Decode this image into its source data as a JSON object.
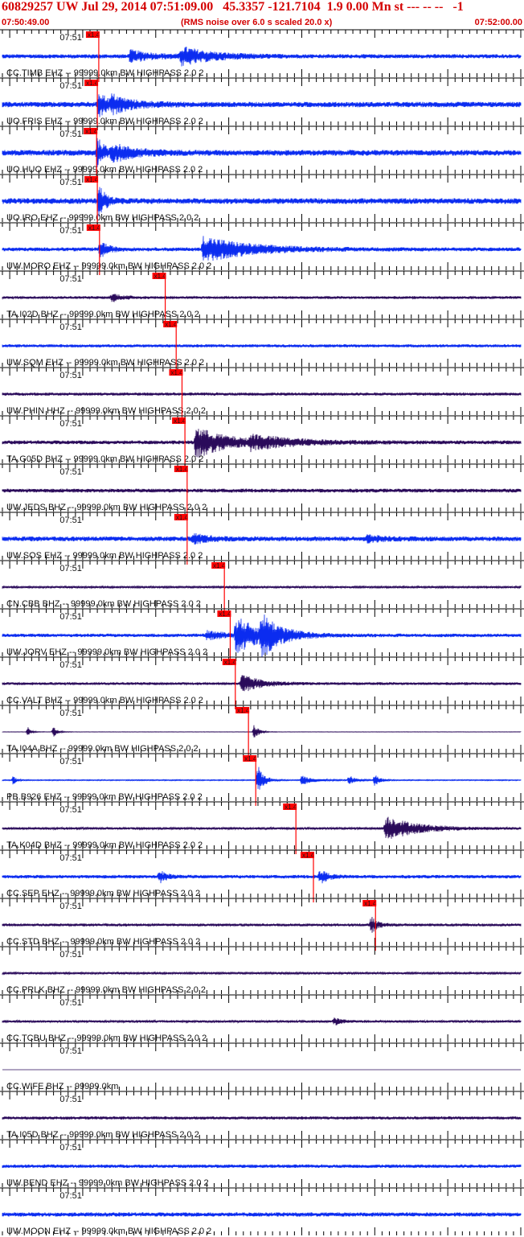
{
  "header": {
    "title": "60829257 UW Jul 29, 2014 07:51:09.00   45.3357 -121.7104  1.9 0.00 Mn st --- -- --   -1",
    "start_time": "07:50:49.00",
    "noise_note": "(RMS noise over 6.0 s scaled 20.0 x)",
    "end_time": "07:52:00.00"
  },
  "colors": {
    "title": "#d40000",
    "blue_trace": "#0b2cf0",
    "dark_trace": "#2a0a5a",
    "pick_line": "#ff0000",
    "pick_flag": "#ff0000",
    "axis": "#000000"
  },
  "chart_data": {
    "type": "line",
    "title": "60829257 UW Jul 29, 2014 07:51:09.00   45.3357 -121.7104  1.9 0.00 Mn st --- -- --   -1",
    "x_axis": {
      "start": "07:50:49.00",
      "end": "07:52:00.00",
      "minute_label": "07:51",
      "tick_interval_s": 1,
      "major_tick_interval_s": 10
    },
    "pick_flag_label": "x1.4",
    "series": [
      {
        "name": "CC.TIMB EHZ -- 99999.0km BW  HIGHPASS  2.0  2",
        "color": "blue",
        "pick_s": 13.2,
        "bursts": [
          {
            "t": 17.5,
            "a": 0.55,
            "w": 3
          },
          {
            "t": 24.5,
            "a": 0.9,
            "w": 4
          }
        ],
        "noise": 0.22
      },
      {
        "name": "UO.FRIS EHZ -- 99999.0km BW  HIGHPASS  2.0  2",
        "color": "blue",
        "pick_s": 13.0,
        "bursts": [
          {
            "t": 13.2,
            "a": 1.4,
            "w": 1.2
          },
          {
            "t": 15,
            "a": 0.7,
            "w": 3
          }
        ],
        "noise": 0.28
      },
      {
        "name": "UO.HUO EHZ -- 99999.0km BW  HIGHPASS  2.0  2",
        "color": "blue",
        "pick_s": 12.9,
        "bursts": [
          {
            "t": 13.0,
            "a": 1.5,
            "w": 1.0
          },
          {
            "t": 15,
            "a": 0.8,
            "w": 3
          }
        ],
        "noise": 0.3
      },
      {
        "name": "UO.IRO EHZ -- 99999.0km BW  HIGHPASS  2.0  2",
        "color": "blue",
        "pick_s": 13.0,
        "bursts": [
          {
            "t": 13.2,
            "a": 1.8,
            "w": 0.8
          }
        ],
        "noise": 0.3
      },
      {
        "name": "UW.MORO EHZ -- 99999.0km BW  HIGHPASS  2.0  2",
        "color": "blue",
        "pick_s": 13.3,
        "bursts": [
          {
            "t": 13.4,
            "a": 0.9,
            "w": 1
          },
          {
            "t": 27.5,
            "a": 1.3,
            "w": 6
          }
        ],
        "noise": 0.2
      },
      {
        "name": "TA.I02D BHZ -- 99999.0km BW  HIGHPASS  2.0  2",
        "color": "dark",
        "pick_s": 22.3,
        "bursts": [
          {
            "t": 15,
            "a": 0.4,
            "w": 1.5
          }
        ],
        "noise": 0.14
      },
      {
        "name": "UW.SQM EHZ -- 99999.0km BW  HIGHPASS  2.0  2",
        "color": "blue",
        "pick_s": 23.8,
        "bursts": [],
        "noise": 0.16
      },
      {
        "name": "UW.PHIN HHZ -- 99999.0km BW  HIGHPASS  2.0  2",
        "color": "dark",
        "pick_s": 24.6,
        "bursts": [],
        "noise": 0.16
      },
      {
        "name": "TA.G05D BHZ -- 99999.0km BW  HIGHPASS  2.0  2",
        "color": "dark",
        "pick_s": 25.0,
        "bursts": [
          {
            "t": 26.5,
            "a": 1.6,
            "w": 4
          },
          {
            "t": 34,
            "a": 0.6,
            "w": 6
          }
        ],
        "noise": 0.2
      },
      {
        "name": "UW.JEDS BHZ -- 99999.0km BW  HIGHPASS  2.0  2",
        "color": "dark",
        "pick_s": 25.3,
        "bursts": [],
        "noise": 0.2
      },
      {
        "name": "UW.SOS EHZ -- 99999.0km BW  HIGHPASS  2.0  2",
        "color": "blue",
        "pick_s": 25.3,
        "bursts": [
          {
            "t": 26,
            "a": 0.5,
            "w": 2
          },
          {
            "t": 50,
            "a": 0.3,
            "w": 2
          }
        ],
        "noise": 0.25
      },
      {
        "name": "CN.CBB BHZ -- 99999.0km BW  HIGHPASS  2.0  2",
        "color": "dark",
        "pick_s": 30.4,
        "bursts": [],
        "noise": 0.1
      },
      {
        "name": "UW.JORV EHZ -- 99999.0km BW  HIGHPASS  2.0  2",
        "color": "blue",
        "pick_s": 31.2,
        "bursts": [
          {
            "t": 32,
            "a": 1.9,
            "w": 3
          },
          {
            "t": 35.5,
            "a": 1.8,
            "w": 2.5
          },
          {
            "t": 28,
            "a": 0.4,
            "w": 3
          }
        ],
        "noise": 0.18
      },
      {
        "name": "CC.VALT BHZ -- 99999.0km BW  HIGHPASS  2.0  2",
        "color": "dark",
        "pick_s": 31.9,
        "bursts": [
          {
            "t": 32.8,
            "a": 0.9,
            "w": 2.5
          }
        ],
        "noise": 0.14
      },
      {
        "name": "TA.I04A BHZ -- 99999.0km BW  HIGHPASS  2.0  2",
        "color": "dark",
        "pick_s": 33.7,
        "bursts": [
          {
            "t": 3.5,
            "a": 0.5,
            "w": 0.4
          },
          {
            "t": 7,
            "a": 0.6,
            "w": 0.5
          },
          {
            "t": 34.5,
            "a": 0.8,
            "w": 0.6
          }
        ],
        "noise": 0.02
      },
      {
        "name": "PB.B926 EHZ -- 99999.0km BW  HIGHPASS  2.0  2",
        "color": "blue",
        "pick_s": 34.7,
        "bursts": [
          {
            "t": 35,
            "a": 1.6,
            "w": 0.8
          },
          {
            "t": 41,
            "a": 0.5,
            "w": 1.5
          },
          {
            "t": 47.5,
            "a": 0.5,
            "w": 0.8
          },
          {
            "t": 51,
            "a": 0.6,
            "w": 0.7
          },
          {
            "t": 1.5,
            "a": 0.5,
            "w": 0.4
          }
        ],
        "noise": 0.05
      },
      {
        "name": "TA.K04D BHZ -- 99999.0km BW  HIGHPASS  2.0  2",
        "color": "dark",
        "pick_s": 40.2,
        "bursts": [
          {
            "t": 52.5,
            "a": 1.3,
            "w": 4
          }
        ],
        "noise": 0.12
      },
      {
        "name": "CC.SEP EHZ -- 99999.0km BW  HIGHPASS  2.0  2",
        "color": "blue",
        "pick_s": 42.6,
        "bursts": [
          {
            "t": 43.5,
            "a": 0.7,
            "w": 1
          },
          {
            "t": 21.5,
            "a": 0.6,
            "w": 1
          }
        ],
        "noise": 0.18
      },
      {
        "name": "CC.STD BHZ -- 99999.0km BW  HIGHPASS  2.0  2",
        "color": "dark",
        "pick_s": 51.1,
        "bursts": [
          {
            "t": 50.5,
            "a": 0.8,
            "w": 1
          }
        ],
        "noise": 0.14
      },
      {
        "name": "CC.PRLK BHZ -- 99999.0km BW  HIGHPASS  2.0  2",
        "color": "dark",
        "pick_s": null,
        "bursts": [],
        "noise": 0.1
      },
      {
        "name": "CC.TCBU BHZ -- 99999.0km BW  HIGHPASS  2.0  2",
        "color": "dark",
        "pick_s": null,
        "bursts": [
          {
            "t": 45.5,
            "a": 0.4,
            "w": 1
          }
        ],
        "noise": 0.12
      },
      {
        "name": "CC.WIFE BHZ -- 99999.0km",
        "color": "dark",
        "pick_s": null,
        "bursts": [],
        "noise": 0.0
      },
      {
        "name": "TA.I05D BHZ -- 99999.0km BW  HIGHPASS  2.0  2",
        "color": "dark",
        "pick_s": null,
        "bursts": [],
        "noise": 0.16
      },
      {
        "name": "UW.BEND EHZ -- 99999.0km BW  HIGHPASS  2.0  2",
        "color": "blue",
        "pick_s": null,
        "bursts": [],
        "noise": 0.18
      },
      {
        "name": "UW.MOON EHZ -- 99999.0km BW  HIGHPASS  2.0  2",
        "color": "blue",
        "pick_s": null,
        "bursts": [],
        "noise": 0.22
      }
    ]
  }
}
